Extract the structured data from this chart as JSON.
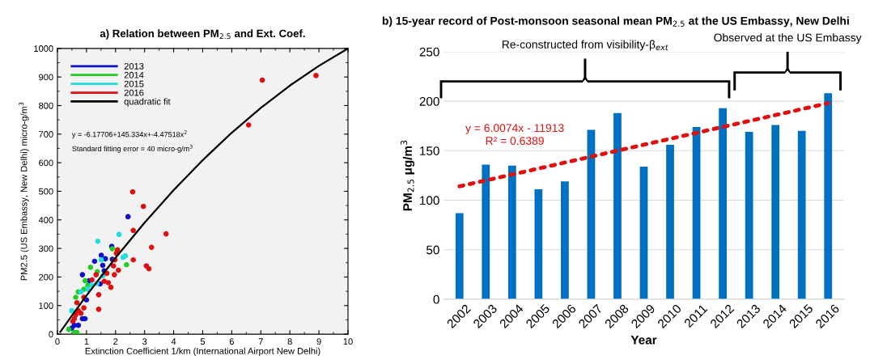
{
  "chart_data": [
    {
      "type": "scatter",
      "title": "a) Relation between PM$_{2.5}$ and Ext. Coef.",
      "xlabel": "Extinction Coefficient 1/km (International Airport New Delhi)",
      "ylabel": "PM2.5 (US Embassy, New Delhi) micro-g/m$^{3}$",
      "xlim": [
        0,
        10
      ],
      "ylim": [
        0,
        1000
      ],
      "xticks": [
        0,
        1,
        2,
        3,
        4,
        5,
        6,
        7,
        8,
        9,
        10
      ],
      "yticks": [
        0,
        100,
        200,
        300,
        400,
        500,
        600,
        700,
        800,
        900,
        1000
      ],
      "marker": "circle",
      "legend": "top left",
      "annotations": [
        "y = -6.17706+145.334x+-4.47518x$^{2}$",
        "Standard fitting error = 40 micro-g/m$^{3}$"
      ],
      "series": [
        {
          "name": "2013",
          "color": "#1010c8",
          "x": [
            2.43,
            1.87,
            1.51,
            1.65,
            1.28,
            1.89,
            1.56,
            0.86,
            1.09,
            1.47,
            1.0,
            0.86,
            0.95,
            0.58,
            0.49,
            0.72,
            1.19,
            1.61
          ],
          "values": [
            411,
            307,
            276,
            264,
            255,
            262,
            241,
            208,
            187,
            176,
            120,
            54,
            54,
            31,
            21,
            31,
            null,
            222
          ]
        },
        {
          "name": "2014",
          "color": "#22cc22",
          "x": [
            1.89,
            2.38,
            1.14,
            0.95,
            0.91,
            0.72,
            0.63,
            1.37,
            1.23,
            0.39,
            0.58,
            0.67,
            1.05
          ],
          "values": [
            299,
            243,
            234,
            187,
            157,
            148,
            129,
            218,
            null,
            17,
            6,
            6,
            171
          ]
        },
        {
          "name": "2015",
          "color": "#22dddd",
          "x": [
            2.12,
            1.39,
            1.51,
            2.26,
            2.34,
            1.05,
            1.56,
            1.19,
            0.49,
            0.81,
            1.36
          ],
          "values": [
            349,
            325,
            260,
            269,
            274,
            157,
            204,
            171,
            82,
            148,
            178
          ]
        },
        {
          "name": "2016",
          "color": "#dd1111",
          "x": [
            2.59,
            2.96,
            3.74,
            3.24,
            2.61,
            2.61,
            3.06,
            3.15,
            2.07,
            2.03,
            1.98,
            1.93,
            2.1,
            1.96,
            1.7,
            1.75,
            1.84,
            1.61,
            1.42,
            1.42,
            1.33,
            1.19,
            0.91,
            0.67,
            0.72,
            0.63,
            0.58,
            0.81,
            0.91,
            0.53,
            7.05,
            8.9,
            6.58
          ],
          "values": [
            498,
            447,
            351,
            304,
            363,
            260,
            239,
            229,
            295,
            283,
            260,
            239,
            224,
            208,
            213,
            180,
            164,
            185,
            138,
            87,
            208,
            190,
            129,
            110,
            82,
            68,
            54,
            73,
            92,
            45,
            889,
            905,
            732
          ]
        },
        {
          "name": "quadratic fit",
          "type": "line",
          "color": "#000000",
          "marker": "none",
          "x": [
            0.1,
            0.5,
            1,
            2,
            3,
            4,
            5,
            6,
            7,
            8,
            9,
            10
          ],
          "values": [
            8,
            65,
            135,
            267,
            390,
            504,
            609,
            705,
            792,
            870,
            939,
            1000
          ]
        }
      ]
    },
    {
      "type": "bar",
      "title": "b) 15-year record of Post-monsoon seasonal mean PM$_{2.5}$ at the US Embassy, New Delhi",
      "xlabel": "Year",
      "ylabel": "PM$_{2.5}$ μg/m$^{3}$",
      "ylim": [
        0,
        250
      ],
      "yticks": [
        0,
        50,
        100,
        150,
        200,
        250
      ],
      "grid": "y",
      "categories": [
        "2002",
        "2003",
        "2004",
        "2005",
        "2006",
        "2007",
        "2008",
        "2009",
        "2010",
        "2011",
        "2012",
        "2013",
        "2014",
        "2015",
        "2016"
      ],
      "annotations": [
        "y = 6.0074x - 11913",
        "R² = 0.6389",
        "Re-constructed from visibility-β$_{ext}$",
        "Observed at the US Embassy"
      ],
      "series": [
        {
          "color": "#0070c0",
          "values": [
            87,
            136,
            135,
            111,
            119,
            171,
            188,
            134,
            156,
            174,
            193,
            169,
            176,
            170,
            208
          ]
        },
        {
          "type": "line",
          "color": "#e01010",
          "line_style": "dotted",
          "marker": "none",
          "values": [
            114,
            120,
            126,
            132,
            138,
            144,
            150,
            156,
            162,
            168,
            174,
            180,
            186,
            192,
            198
          ]
        }
      ]
    }
  ]
}
